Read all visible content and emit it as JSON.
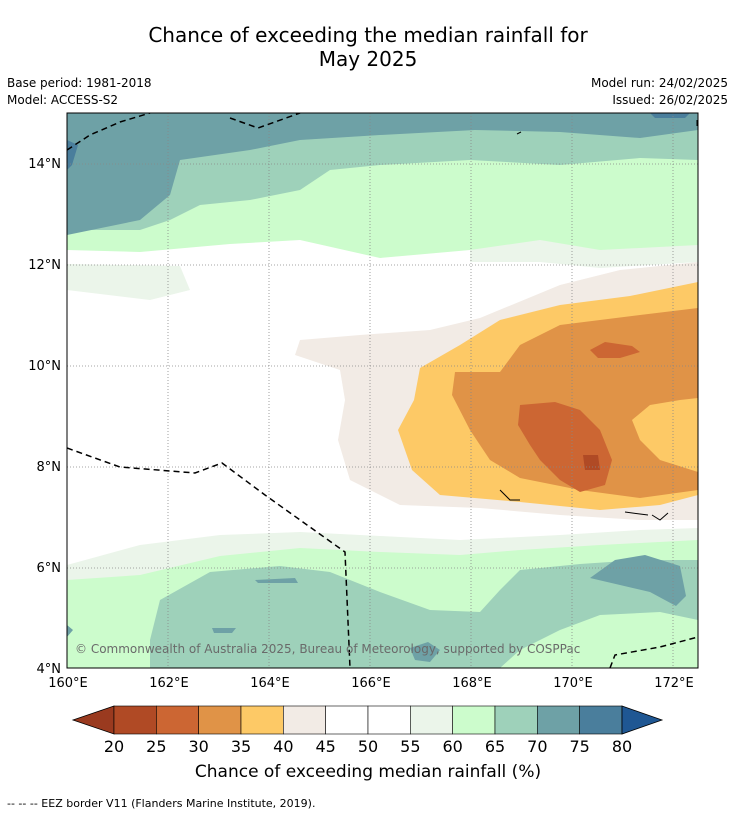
{
  "title_line1": "Chance of exceeding the median rainfall for",
  "title_line2": "May 2025",
  "base_period": "Base period: 1981-2018",
  "model": "Model: ACCESS-S2",
  "model_run": "Model run: 24/02/2025",
  "issued": "Issued: 26/02/2025",
  "copyright": "© Commonwealth of Australia 2025, Bureau of Meteorology, supported by COSPPac",
  "x_ticks": [
    "160°E",
    "162°E",
    "164°E",
    "166°E",
    "168°E",
    "170°E",
    "172°E"
  ],
  "y_ticks": [
    "14°N",
    "12°N",
    "10°N",
    "8°N",
    "6°N",
    "4°N"
  ],
  "colorbar": {
    "labels": [
      "20",
      "25",
      "30",
      "35",
      "40",
      "45",
      "50",
      "55",
      "60",
      "65",
      "70",
      "75",
      "80"
    ],
    "title": "Chance of exceeding median rainfall (%)",
    "colors": {
      "lt20": "#9a3a1f",
      "c20": "#b04a25",
      "c25": "#cc6633",
      "c30": "#e09347",
      "c35": "#fdc966",
      "c40": "#f2ebe5",
      "c45": "#ffffff",
      "c50": "#ffffff",
      "c55": "#ebf5ea",
      "c60": "#ccfccc",
      "c65": "#9ed1ba",
      "c70": "#6ea1a6",
      "c75": "#4a7e9c",
      "gt80": "#1f5793"
    }
  },
  "footnote": "--  --  -- EEZ border V11 (Flanders Marine Institute, 2019)."
}
